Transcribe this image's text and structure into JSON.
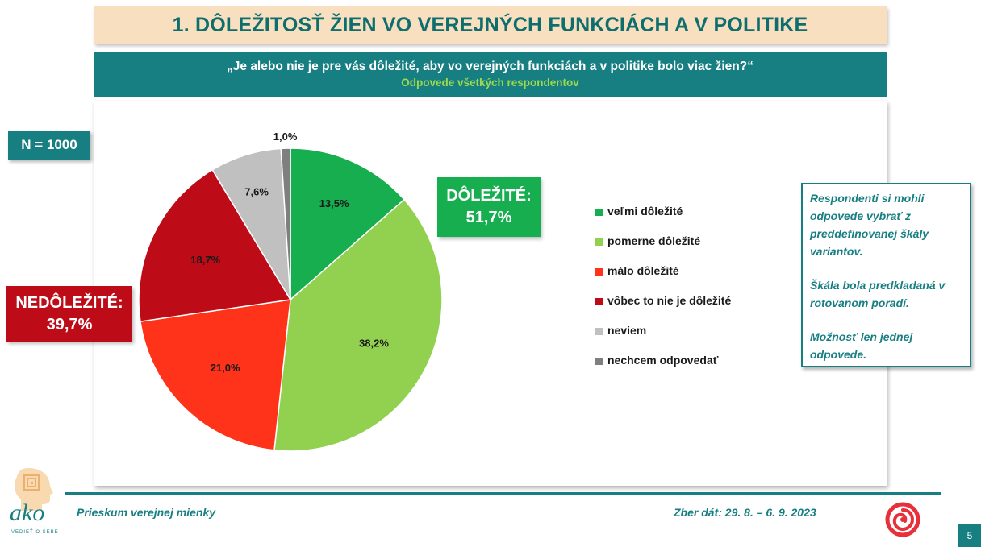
{
  "title": "1. DÔLEŽITOSŤ ŽIEN VO VEREJNÝCH FUNKCIÁCH A V POLITIKE",
  "question": "„Je alebo nie je pre vás dôležité, aby vo verejných funkciách a v politike bolo viac žien?“",
  "subtitle": "Odpovede všetkých respondentov",
  "sample": "N = 1000",
  "groups": {
    "important": {
      "label": "DÔLEŽITÉ:",
      "value": "51,7%"
    },
    "unimportant": {
      "label": "NEDÔLEŽITÉ:",
      "value": "39,7%"
    }
  },
  "note": {
    "p1": "Respondenti si mohli odpovede vybrať z preddefinovanej škály variantov.",
    "p2": "Škála bola predkladaná v rotovanom poradí.",
    "p3": "Možnosť len jednej odpovede."
  },
  "footer": {
    "left": "Prieskum verejnej mienky",
    "right": "Zber dát: 29. 8. – 6. 9. 2023",
    "page": "5",
    "logo_text": "ako",
    "logo_tagline": "VEDIEŤ O SEBE"
  },
  "colors": {
    "teal": "#177f82",
    "very_important": "#16ae4e",
    "rather_important": "#92d050",
    "little_important": "#ff3319",
    "not_important": "#be0b18",
    "dont_know": "#c0c0c0",
    "refuse": "#7f7f7f"
  },
  "chart_data": {
    "type": "pie",
    "start_angle_deg": 0,
    "direction": "clockwise",
    "slices": [
      {
        "label": "veľmi dôležité",
        "value": 13.5,
        "display": "13,5%",
        "color": "#16ae4e"
      },
      {
        "label": "pomerne dôležité",
        "value": 38.2,
        "display": "38,2%",
        "color": "#92d050"
      },
      {
        "label": "málo dôležité",
        "value": 21.0,
        "display": "21,0%",
        "color": "#ff3319"
      },
      {
        "label": "vôbec to nie je dôležité",
        "value": 18.7,
        "display": "18,7%",
        "color": "#be0b18"
      },
      {
        "label": "neviem",
        "value": 7.6,
        "display": "7,6%",
        "color": "#c0c0c0"
      },
      {
        "label": "nechcem odpovedať",
        "value": 1.0,
        "display": "1,0%",
        "color": "#7f7f7f"
      }
    ],
    "legend_position": "right"
  }
}
